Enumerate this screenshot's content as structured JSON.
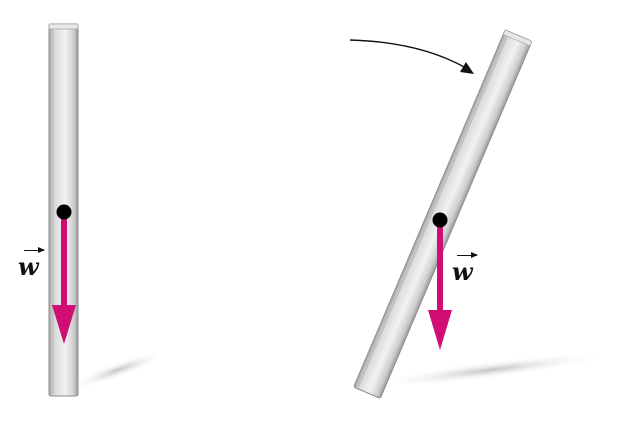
{
  "labels": {
    "weight_left": "w",
    "weight_right": "w"
  },
  "colors": {
    "weight_vector": "#cf0d72",
    "center_of_mass": "#000000",
    "stick_light": "#f0f0f0",
    "stick_mid": "#d2d2d2",
    "stick_dark": "#9d9d9d",
    "shadow": "#c9c9c9"
  },
  "icons": {
    "rotation": "curved-arrow-icon",
    "vector": "vector-arrow-icon"
  }
}
